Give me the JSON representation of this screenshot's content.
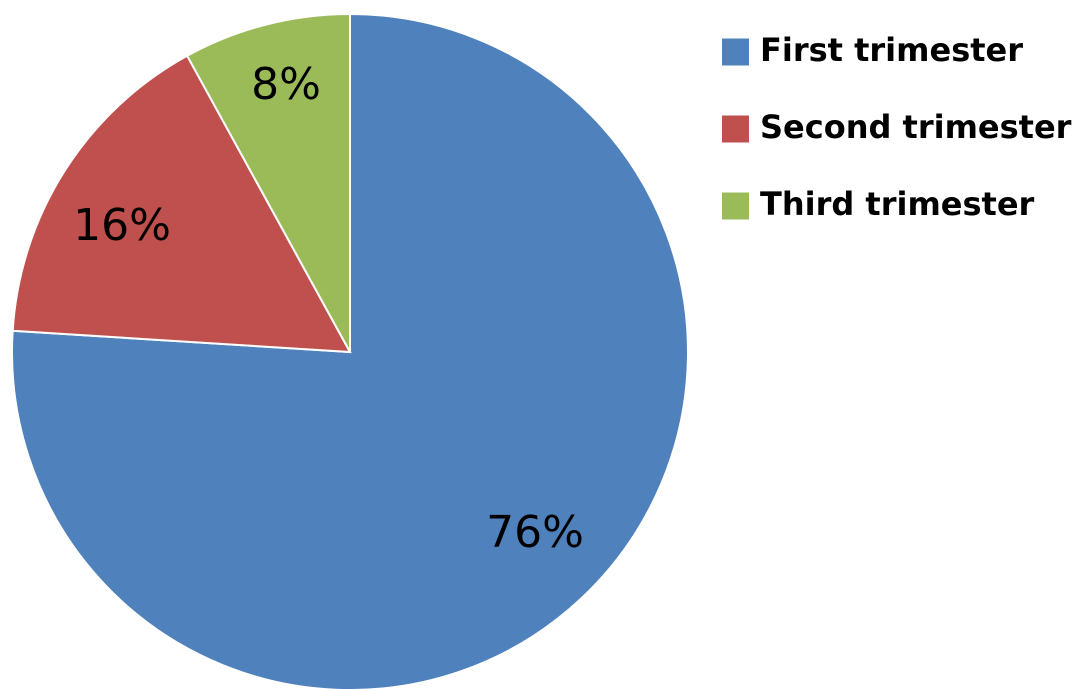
{
  "chart_data": {
    "type": "pie",
    "categories": [
      "First trimester",
      "Second trimester",
      "Third trimester"
    ],
    "values": [
      76,
      16,
      8
    ],
    "value_labels": [
      "76%",
      "16%",
      "8%"
    ],
    "colors": [
      "#4F81BD",
      "#C0504D",
      "#9BBB59"
    ],
    "legend_position": "right"
  }
}
